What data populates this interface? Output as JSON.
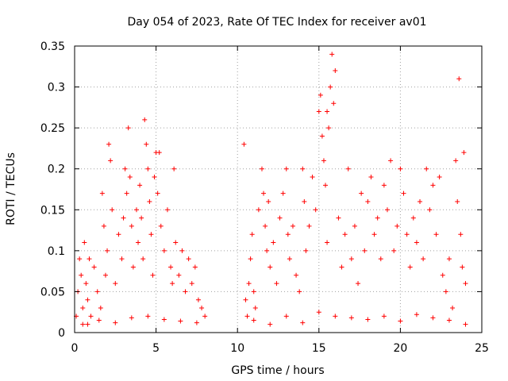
{
  "chart_data": {
    "type": "scatter",
    "title": "Day 054 of 2023, Rate Of TEC Index for receiver av01",
    "xlabel": "GPS time / hours",
    "ylabel": "ROTI / TECUs",
    "xlim": [
      0,
      25
    ],
    "ylim": [
      0,
      0.35
    ],
    "grid": true,
    "marker": "+",
    "color": "#ff0000",
    "x_ticks": [
      0,
      5,
      10,
      15,
      20,
      25
    ],
    "x_tick_labels": [
      "0",
      "5",
      "10",
      "15",
      "20",
      "25"
    ],
    "y_ticks": [
      0,
      0.05,
      0.1,
      0.15,
      0.2,
      0.25,
      0.3,
      0.35
    ],
    "y_tick_labels": [
      "0",
      "0.05",
      "0.1",
      "0.15",
      "0.2",
      "0.25",
      "0.3",
      "0.35"
    ],
    "series": [
      {
        "points": [
          [
            0.1,
            0.02
          ],
          [
            0.2,
            0.05
          ],
          [
            0.3,
            0.09
          ],
          [
            0.4,
            0.07
          ],
          [
            0.5,
            0.03
          ],
          [
            0.6,
            0.11
          ],
          [
            0.7,
            0.06
          ],
          [
            0.8,
            0.04
          ],
          [
            0.9,
            0.09
          ],
          [
            1.0,
            0.02
          ],
          [
            1.2,
            0.08
          ],
          [
            1.4,
            0.05
          ],
          [
            1.6,
            0.03
          ],
          [
            1.7,
            0.17
          ],
          [
            1.8,
            0.13
          ],
          [
            1.9,
            0.07
          ],
          [
            2.0,
            0.1
          ],
          [
            2.1,
            0.23
          ],
          [
            2.2,
            0.21
          ],
          [
            2.3,
            0.15
          ],
          [
            2.5,
            0.06
          ],
          [
            2.7,
            0.12
          ],
          [
            2.9,
            0.09
          ],
          [
            3.0,
            0.14
          ],
          [
            3.1,
            0.2
          ],
          [
            3.2,
            0.17
          ],
          [
            3.3,
            0.25
          ],
          [
            3.4,
            0.19
          ],
          [
            3.5,
            0.13
          ],
          [
            3.6,
            0.08
          ],
          [
            3.8,
            0.15
          ],
          [
            3.9,
            0.11
          ],
          [
            4.0,
            0.18
          ],
          [
            4.1,
            0.14
          ],
          [
            4.2,
            0.09
          ],
          [
            4.3,
            0.26
          ],
          [
            4.4,
            0.23
          ],
          [
            4.5,
            0.2
          ],
          [
            4.6,
            0.16
          ],
          [
            4.7,
            0.12
          ],
          [
            4.8,
            0.07
          ],
          [
            4.9,
            0.19
          ],
          [
            5.0,
            0.22
          ],
          [
            5.1,
            0.17
          ],
          [
            5.2,
            0.22
          ],
          [
            5.3,
            0.13
          ],
          [
            5.5,
            0.1
          ],
          [
            5.7,
            0.15
          ],
          [
            5.9,
            0.08
          ],
          [
            6.0,
            0.06
          ],
          [
            6.1,
            0.2
          ],
          [
            6.2,
            0.11
          ],
          [
            6.4,
            0.07
          ],
          [
            6.6,
            0.1
          ],
          [
            6.8,
            0.05
          ],
          [
            7.0,
            0.09
          ],
          [
            7.2,
            0.06
          ],
          [
            7.4,
            0.08
          ],
          [
            7.6,
            0.04
          ],
          [
            7.8,
            0.03
          ],
          [
            8.0,
            0.02
          ],
          [
            0.5,
            0.01
          ],
          [
            1.5,
            0.015
          ],
          [
            2.5,
            0.012
          ],
          [
            3.5,
            0.018
          ],
          [
            4.5,
            0.02
          ],
          [
            5.5,
            0.016
          ],
          [
            6.5,
            0.014
          ],
          [
            7.5,
            0.012
          ],
          [
            0.8,
            0.01
          ],
          [
            10.4,
            0.23
          ],
          [
            10.5,
            0.04
          ],
          [
            10.6,
            0.02
          ],
          [
            10.7,
            0.06
          ],
          [
            10.8,
            0.09
          ],
          [
            10.9,
            0.12
          ],
          [
            11.0,
            0.05
          ],
          [
            11.1,
            0.03
          ],
          [
            11.3,
            0.15
          ],
          [
            11.5,
            0.2
          ],
          [
            11.6,
            0.17
          ],
          [
            11.7,
            0.13
          ],
          [
            11.8,
            0.1
          ],
          [
            11.9,
            0.16
          ],
          [
            12.0,
            0.08
          ],
          [
            12.2,
            0.11
          ],
          [
            12.4,
            0.06
          ],
          [
            12.6,
            0.14
          ],
          [
            12.8,
            0.17
          ],
          [
            13.0,
            0.2
          ],
          [
            13.1,
            0.12
          ],
          [
            13.2,
            0.09
          ],
          [
            13.4,
            0.13
          ],
          [
            13.6,
            0.07
          ],
          [
            13.8,
            0.05
          ],
          [
            14.0,
            0.2
          ],
          [
            14.1,
            0.16
          ],
          [
            14.2,
            0.1
          ],
          [
            14.4,
            0.13
          ],
          [
            14.6,
            0.19
          ],
          [
            14.8,
            0.15
          ],
          [
            15.0,
            0.27
          ],
          [
            15.1,
            0.29
          ],
          [
            15.2,
            0.24
          ],
          [
            15.3,
            0.21
          ],
          [
            15.4,
            0.18
          ],
          [
            15.5,
            0.27
          ],
          [
            15.6,
            0.25
          ],
          [
            15.7,
            0.3
          ],
          [
            15.8,
            0.34
          ],
          [
            15.9,
            0.28
          ],
          [
            16.0,
            0.32
          ],
          [
            15.5,
            0.11
          ],
          [
            16.2,
            0.14
          ],
          [
            16.4,
            0.08
          ],
          [
            16.6,
            0.12
          ],
          [
            16.8,
            0.2
          ],
          [
            17.0,
            0.09
          ],
          [
            17.2,
            0.13
          ],
          [
            17.4,
            0.06
          ],
          [
            17.6,
            0.17
          ],
          [
            17.8,
            0.1
          ],
          [
            18.0,
            0.16
          ],
          [
            18.2,
            0.19
          ],
          [
            18.4,
            0.12
          ],
          [
            18.6,
            0.14
          ],
          [
            18.8,
            0.09
          ],
          [
            19.0,
            0.18
          ],
          [
            19.2,
            0.15
          ],
          [
            19.4,
            0.21
          ],
          [
            19.6,
            0.1
          ],
          [
            19.8,
            0.13
          ],
          [
            20.0,
            0.2
          ],
          [
            20.2,
            0.17
          ],
          [
            20.4,
            0.12
          ],
          [
            20.6,
            0.08
          ],
          [
            20.8,
            0.14
          ],
          [
            21.0,
            0.11
          ],
          [
            21.2,
            0.16
          ],
          [
            21.4,
            0.09
          ],
          [
            21.6,
            0.2
          ],
          [
            21.8,
            0.15
          ],
          [
            22.0,
            0.18
          ],
          [
            22.2,
            0.12
          ],
          [
            22.4,
            0.19
          ],
          [
            22.6,
            0.07
          ],
          [
            22.8,
            0.05
          ],
          [
            23.0,
            0.09
          ],
          [
            23.2,
            0.03
          ],
          [
            23.4,
            0.21
          ],
          [
            23.5,
            0.16
          ],
          [
            23.6,
            0.31
          ],
          [
            23.7,
            0.12
          ],
          [
            23.8,
            0.08
          ],
          [
            23.9,
            0.22
          ],
          [
            24.0,
            0.06
          ],
          [
            11,
            0.015
          ],
          [
            13,
            0.02
          ],
          [
            15,
            0.025
          ],
          [
            17,
            0.018
          ],
          [
            19,
            0.02
          ],
          [
            21,
            0.022
          ],
          [
            23,
            0.015
          ],
          [
            12,
            0.01
          ],
          [
            14,
            0.012
          ],
          [
            16,
            0.02
          ],
          [
            18,
            0.016
          ],
          [
            20,
            0.014
          ],
          [
            22,
            0.018
          ],
          [
            24,
            0.01
          ]
        ]
      }
    ]
  }
}
